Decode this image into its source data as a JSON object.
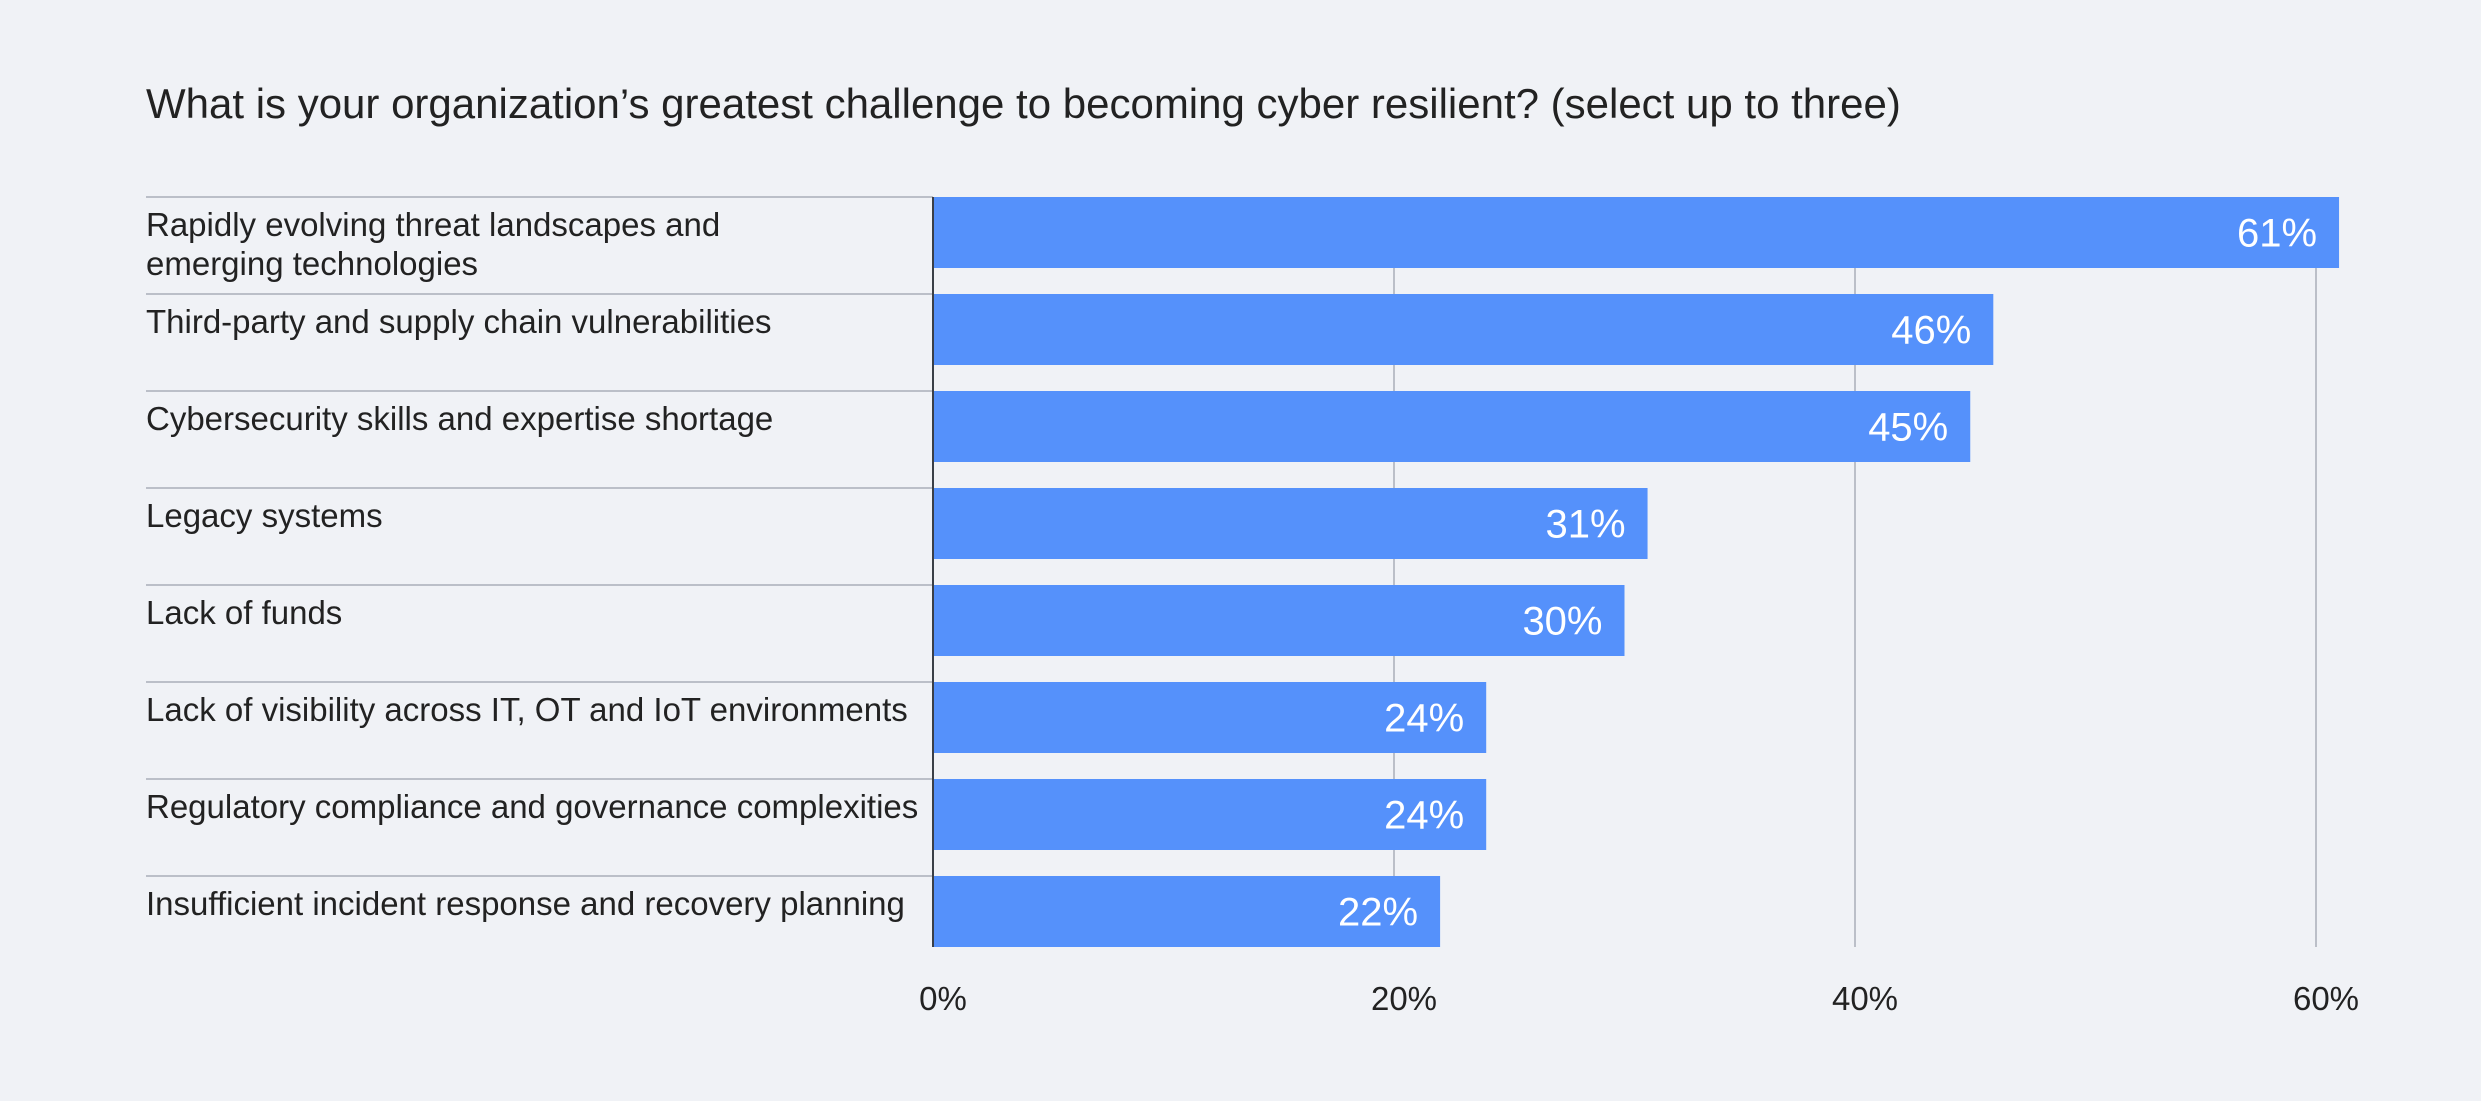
{
  "chart_data": {
    "type": "bar",
    "orientation": "horizontal",
    "title": "What is your organization’s greatest challenge to becoming cyber resilient? (select up to three)",
    "categories": [
      "Rapidly evolving threat landscapes and emerging technologies",
      "Third-party and supply chain vulnerabilities",
      "Cybersecurity skills and expertise shortage",
      "Legacy systems",
      "Lack of funds",
      "Lack of visibility across IT, OT and IoT environments",
      "Regulatory compliance and governance complexities",
      "Insufficient incident response and recovery planning"
    ],
    "values": [
      61,
      46,
      45,
      31,
      30,
      24,
      24,
      22
    ],
    "data_labels": [
      "61%",
      "46%",
      "45%",
      "31%",
      "30%",
      "24%",
      "24%",
      "22%"
    ],
    "x_ticks": [
      0,
      20,
      40,
      60
    ],
    "x_tick_labels": [
      "0%",
      "20%",
      "40%",
      "60%"
    ],
    "xlim": [
      0,
      60
    ],
    "grid": "vertical",
    "legend": "none",
    "colors": {
      "bar": "#5591fb",
      "bar_label": "#ffffff",
      "text": "#222222",
      "gridline": "#a9aeb8",
      "background": "#f0f2f6"
    }
  }
}
